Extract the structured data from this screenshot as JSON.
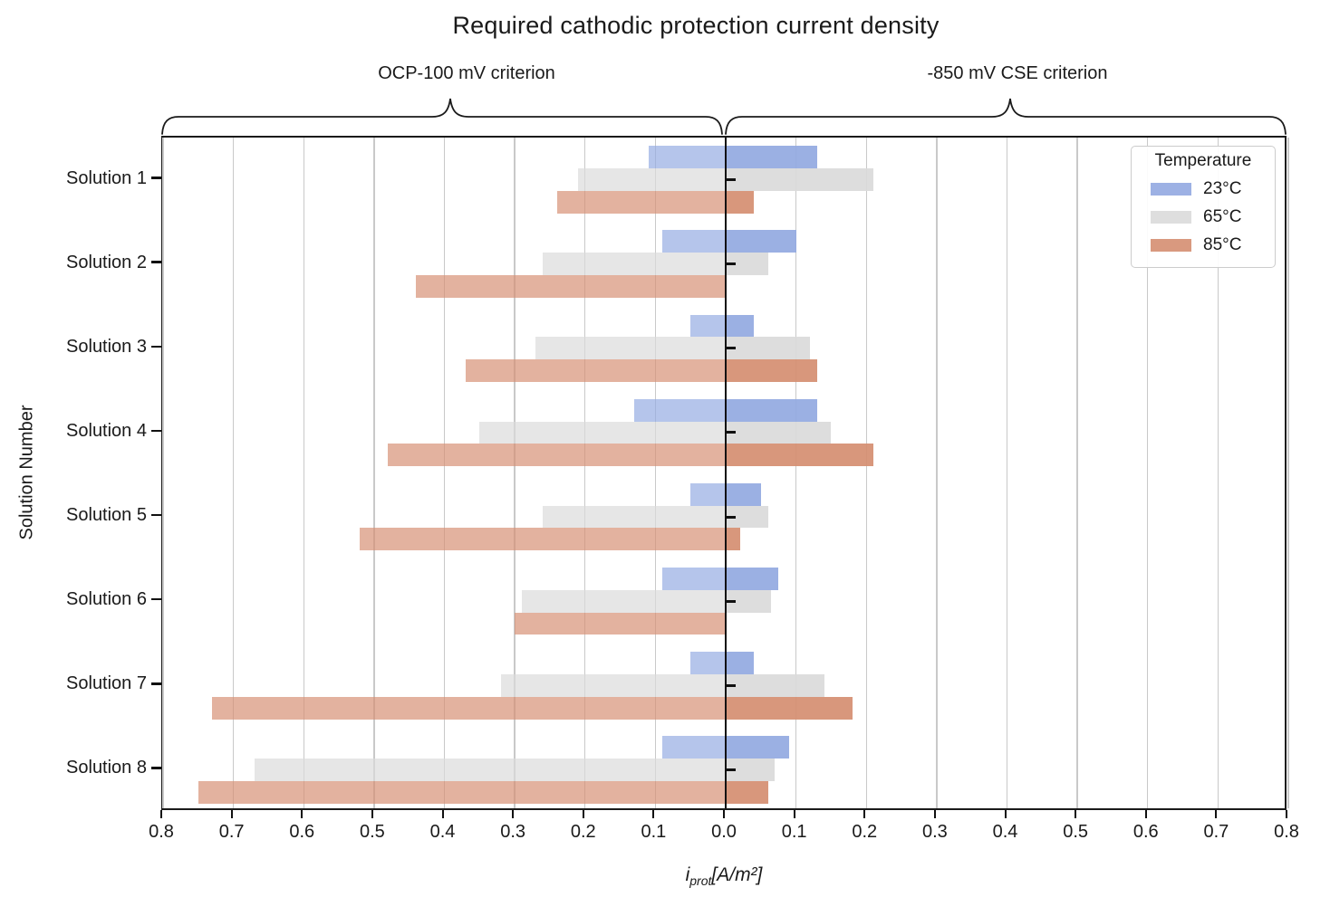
{
  "chart_data": {
    "type": "bar",
    "orientation": "horizontal_diverging",
    "title": "Required cathodic protection current density",
    "left_criterion": "OCP-100 mV criterion",
    "right_criterion": "-850 mV CSE criterion",
    "xlabel": {
      "var": "i",
      "sub": "prot",
      "unit": "[A/m²]"
    },
    "ylabel": "Solution Number",
    "xlim": 0.8,
    "xtick_step": 0.1,
    "xticklabels": [
      "0.8",
      "0.7",
      "0.6",
      "0.5",
      "0.4",
      "0.3",
      "0.2",
      "0.1",
      "0.0",
      "0.1",
      "0.2",
      "0.3",
      "0.4",
      "0.5",
      "0.6",
      "0.7",
      "0.8"
    ],
    "grid": true,
    "legend_position": "upper right",
    "categories": [
      "Solution 1",
      "Solution 2",
      "Solution 3",
      "Solution 4",
      "Solution 5",
      "Solution 6",
      "Solution 7",
      "Solution 8"
    ],
    "legend": {
      "title": "Temperature"
    },
    "series": [
      {
        "name": "23°C",
        "color": "#92A9E1",
        "ocp100_mV": [
          0.11,
          0.09,
          0.05,
          0.13,
          0.05,
          0.09,
          0.05,
          0.09
        ],
        "cse850_mV": [
          0.13,
          0.1,
          0.04,
          0.13,
          0.05,
          0.075,
          0.04,
          0.09
        ]
      },
      {
        "name": "65°C",
        "color": "#DADADA",
        "ocp100_mV": [
          0.21,
          0.26,
          0.27,
          0.35,
          0.26,
          0.29,
          0.32,
          0.67
        ],
        "cse850_mV": [
          0.21,
          0.06,
          0.12,
          0.15,
          0.06,
          0.065,
          0.14,
          0.07
        ]
      },
      {
        "name": "85°C",
        "color": "#D58E71",
        "ocp100_mV": [
          0.24,
          0.44,
          0.37,
          0.48,
          0.52,
          0.3,
          0.73,
          0.75
        ],
        "cse850_mV": [
          0.04,
          0.0,
          0.13,
          0.21,
          0.02,
          0.0,
          0.18,
          0.06
        ]
      }
    ]
  }
}
